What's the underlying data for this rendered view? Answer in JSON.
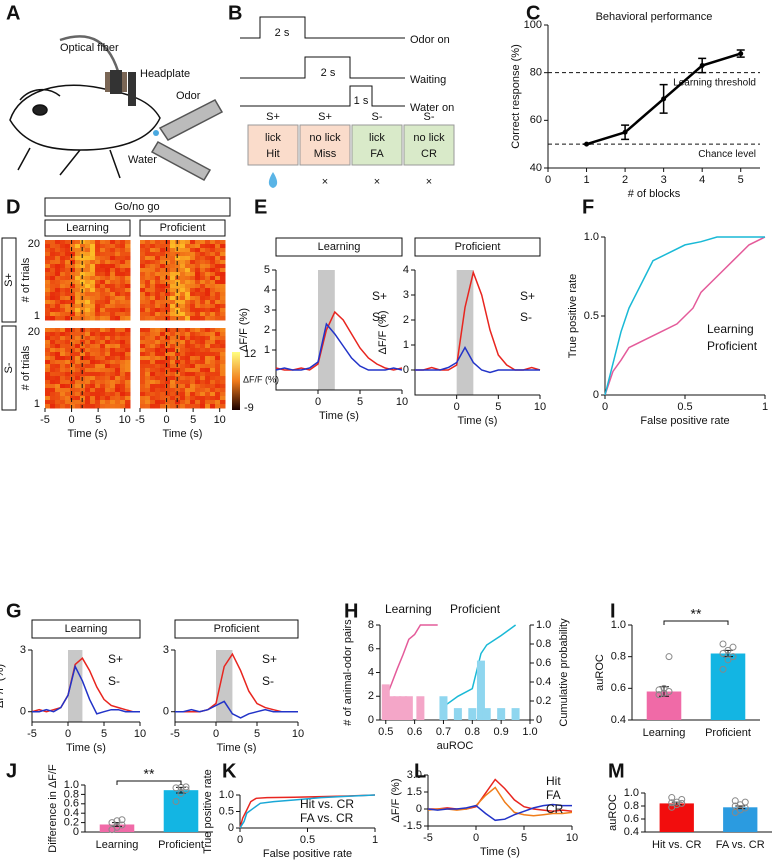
{
  "panel_labels": [
    "A",
    "B",
    "C",
    "D",
    "E",
    "F",
    "G",
    "H",
    "I",
    "J",
    "K",
    "L",
    "M"
  ],
  "panel_a": {
    "labels": [
      "Optical fiber",
      "Headplate",
      "Odor",
      "Water"
    ]
  },
  "panel_b": {
    "signals": [
      {
        "name": "Odor on",
        "duration": "2 s"
      },
      {
        "name": "Waiting",
        "duration": "2 s"
      },
      {
        "name": "Water on",
        "duration": "1 s"
      }
    ],
    "outcomes": [
      {
        "cue": "S+",
        "response": "lick",
        "outcome": "Hit",
        "color": "#e8251f",
        "box": "#fadccb"
      },
      {
        "cue": "S+",
        "response": "no lick",
        "outcome": "Miss",
        "color": "#2b3fa8",
        "box": "#fadccb",
        "result": "×"
      },
      {
        "cue": "S-",
        "response": "lick",
        "outcome": "FA",
        "color": "#2b3fa8",
        "box": "#d9eac9",
        "result": "×"
      },
      {
        "cue": "S-",
        "response": "no lick",
        "outcome": "CR",
        "color": "#e8251f",
        "box": "#d9eac9",
        "result": "×"
      }
    ]
  },
  "panel_d": {
    "title": "Go/no go",
    "headers": [
      "Learning",
      "Proficient"
    ],
    "rows": [
      "S+",
      "S-"
    ],
    "ylabel": "# of trials",
    "yticks": [
      20,
      1
    ],
    "xlim": [
      -5,
      11
    ],
    "xticks": [
      -5,
      0,
      5,
      10
    ],
    "xlabel": "Time (s)",
    "event_times": [
      0,
      2
    ],
    "colorbar_ticks": [
      12,
      -9
    ],
    "colorbar_label": "ΔF/F (%)"
  },
  "chart_data": [
    {
      "type": "line",
      "title": "Behavioral performance",
      "xlabel": "# of blocks",
      "ylabel": "Correct response (%)",
      "xlim": [
        0,
        5.5
      ],
      "xticks": [
        0,
        1,
        2,
        3,
        4,
        5
      ],
      "ylim": [
        40,
        100
      ],
      "yticks": [
        40,
        60,
        80,
        100
      ],
      "markers": true,
      "hlines": [
        {
          "value": 80,
          "label": "Learning threshold"
        },
        {
          "value": 50,
          "label": "Chance level"
        }
      ],
      "x": [
        1,
        2,
        3,
        4,
        5
      ],
      "series": [
        {
          "name": null,
          "color": "#000000",
          "values": [
            50,
            55,
            69,
            83,
            88
          ],
          "errors": [
            0,
            3,
            6,
            3,
            1.5
          ]
        }
      ]
    },
    {
      "type": "line",
      "header": "Learning",
      "xlabel": "Time (s)",
      "ylabel": "ΔF/F (%)",
      "xlim": [
        -5,
        10
      ],
      "xticks": [
        0,
        5,
        10
      ],
      "ylim": [
        -1,
        5
      ],
      "yticks": [
        1,
        2,
        3,
        4,
        5
      ],
      "stimulus_window": [
        0,
        2
      ],
      "legend": "upper-right",
      "x": [
        -5,
        -4,
        -3,
        -2,
        -1,
        0,
        1,
        2,
        3,
        4,
        5,
        6,
        7,
        8,
        9,
        10
      ],
      "series": [
        {
          "name": "S+",
          "color": "#e8251f",
          "values": [
            0.1,
            0,
            0,
            0.1,
            0,
            0.3,
            2,
            2.9,
            2.5,
            1.8,
            1.1,
            0.6,
            0.3,
            0.1,
            0,
            0.1
          ]
        },
        {
          "name": "S-",
          "color": "#2233c8",
          "values": [
            0,
            0.1,
            0,
            0,
            0.1,
            0.4,
            2.3,
            1.8,
            1.2,
            0.6,
            0.2,
            0,
            0,
            0,
            0.1,
            0
          ]
        }
      ]
    },
    {
      "type": "line",
      "header": "Proficient",
      "xlabel": "Time (s)",
      "ylabel": "ΔF/F (%)",
      "xlim": [
        -5,
        10
      ],
      "xticks": [
        0,
        5,
        10
      ],
      "ylim": [
        -1,
        4
      ],
      "yticks": [
        0,
        1,
        2,
        3,
        4
      ],
      "stimulus_window": [
        0,
        2
      ],
      "legend": "upper-right",
      "x": [
        -5,
        -4,
        -3,
        -2,
        -1,
        0,
        1,
        2,
        3,
        4,
        5,
        6,
        7,
        8,
        9,
        10
      ],
      "series": [
        {
          "name": "S+",
          "color": "#e8251f",
          "values": [
            0,
            0,
            0.1,
            0,
            0,
            0.2,
            2.5,
            3.9,
            3,
            1.6,
            0.6,
            0.2,
            0,
            0,
            0.1,
            0
          ]
        },
        {
          "name": "S-",
          "color": "#2233c8",
          "values": [
            0,
            0,
            0,
            0,
            0.1,
            0.3,
            0.9,
            0.3,
            0,
            -0.1,
            0,
            0,
            0,
            0,
            0,
            0
          ]
        }
      ]
    },
    {
      "type": "line",
      "xlabel": "False positive rate",
      "ylabel": "True positive rate",
      "xlim": [
        0,
        1
      ],
      "xticks": [
        0,
        0.5,
        1
      ],
      "ylim": [
        0,
        1
      ],
      "yticks": [
        0,
        0.5,
        {
          "value": 1,
          "label": "1.0"
        }
      ],
      "legend": "lower-right",
      "series": [
        {
          "name": "Learning",
          "color": "#e45b9a",
          "x": [
            0,
            0.05,
            0.1,
            0.15,
            0.25,
            0.35,
            0.45,
            0.55,
            0.6,
            0.7,
            0.8,
            0.9,
            1
          ],
          "values": [
            0,
            0.15,
            0.22,
            0.3,
            0.35,
            0.4,
            0.45,
            0.55,
            0.65,
            0.75,
            0.85,
            0.95,
            1
          ]
        },
        {
          "name": "Proficient",
          "color": "#19b9d6",
          "x": [
            0,
            0.05,
            0.1,
            0.15,
            0.25,
            0.3,
            0.4,
            0.5,
            0.6,
            0.7,
            0.8,
            1
          ],
          "values": [
            0,
            0.2,
            0.4,
            0.55,
            0.75,
            0.85,
            0.9,
            0.95,
            0.97,
            1,
            1,
            1
          ]
        }
      ]
    },
    {
      "type": "line",
      "header": "Learning",
      "xlabel": "Time (s)",
      "ylabel": "ΔF/F (%)",
      "xlim": [
        -5,
        10
      ],
      "xticks": [
        -5,
        0,
        5,
        10
      ],
      "ylim": [
        -0.5,
        3
      ],
      "yticks": [
        0,
        3
      ],
      "stimulus_window": [
        0,
        2
      ],
      "legend": "upper-right",
      "x": [
        -5,
        -4,
        -3,
        -2,
        -1,
        0,
        1,
        2,
        3,
        4,
        5,
        6,
        7,
        8,
        9,
        10
      ],
      "series": [
        {
          "name": "S+",
          "color": "#e8251f",
          "values": [
            0,
            0.1,
            0,
            0.1,
            0.2,
            0.8,
            2.3,
            2.6,
            2,
            1.2,
            0.6,
            0.3,
            0.2,
            0.1,
            0,
            0
          ]
        },
        {
          "name": "S-",
          "color": "#2233c8",
          "values": [
            0,
            0,
            0.1,
            0,
            0.2,
            0.8,
            2.2,
            1.5,
            0.6,
            -0.1,
            0,
            0.1,
            0.1,
            0,
            0,
            0
          ]
        }
      ]
    },
    {
      "type": "line",
      "header": "Proficient",
      "xlabel": "Time (s)",
      "xlim": [
        -5,
        10
      ],
      "xticks": [
        -5,
        0,
        5,
        10
      ],
      "ylim": [
        -0.5,
        3
      ],
      "yticks": [
        0,
        3
      ],
      "stimulus_window": [
        0,
        2
      ],
      "legend": "upper-right",
      "x": [
        -5,
        -4,
        -3,
        -2,
        -1,
        0,
        1,
        2,
        3,
        4,
        5,
        6,
        7,
        8,
        9,
        10
      ],
      "series": [
        {
          "name": "S+",
          "color": "#e8251f",
          "values": [
            0,
            0,
            0,
            0,
            0.1,
            0.4,
            2.2,
            2.8,
            2,
            1,
            0.4,
            0.2,
            0.1,
            0,
            0,
            0
          ]
        },
        {
          "name": "S-",
          "color": "#2233c8",
          "values": [
            0,
            0,
            0.1,
            0,
            0.1,
            0.3,
            0.5,
            -0.1,
            -0.3,
            -0.1,
            0,
            0.1,
            0,
            0,
            0,
            0
          ]
        }
      ]
    },
    {
      "type": "line",
      "xlabel": "auROC",
      "ylabel": "# of animal-odor pairs",
      "y2label": "Cumulative probability",
      "xlim": [
        0.48,
        1
      ],
      "xticks": [
        0.5,
        0.6,
        0.7,
        0.8,
        0.9,
        {
          "value": 1,
          "label": "1.0"
        }
      ],
      "ylim": [
        0,
        8
      ],
      "yticks": [
        0,
        2,
        4,
        6,
        8
      ],
      "y2lim": [
        0,
        1
      ],
      "y2ticks": [
        0,
        0.2,
        0.4,
        0.6,
        0.8,
        {
          "value": 1,
          "label": "1.0"
        }
      ],
      "legend": "top",
      "series": [
        {
          "name": "Learning",
          "color": "#e45b9a",
          "type": "step",
          "axis": "y2",
          "x": [
            0.5,
            0.52,
            0.54,
            0.56,
            0.58,
            0.6,
            0.62,
            0.68
          ],
          "values": [
            0.23,
            0.38,
            0.54,
            0.69,
            0.85,
            0.9,
            1,
            1
          ]
        },
        {
          "name": "Proficient",
          "color": "#19b9d6",
          "type": "step",
          "axis": "y2",
          "x": [
            0.7,
            0.75,
            0.8,
            0.83,
            0.85,
            0.9,
            0.95
          ],
          "values": [
            0.14,
            0.25,
            0.33,
            0.7,
            0.79,
            0.89,
            1
          ]
        },
        {
          "color": "#f4a6c8",
          "type": "bar",
          "x": [
            0.5,
            0.52,
            0.54,
            0.56,
            0.58,
            0.62
          ],
          "values": [
            3,
            2,
            2,
            2,
            2,
            2
          ]
        },
        {
          "color": "#8fd6ef",
          "type": "bar",
          "x": [
            0.7,
            0.75,
            0.8,
            0.83,
            0.85,
            0.9,
            0.95
          ],
          "values": [
            2,
            1,
            1,
            5,
            1,
            1,
            1
          ]
        }
      ]
    },
    {
      "type": "bar",
      "ylabel": "auROC",
      "ylim": [
        0.4,
        1
      ],
      "yticks": [
        0.4,
        0.6,
        0.8,
        {
          "value": 1,
          "label": "1.0"
        }
      ],
      "significance": "**",
      "categories": [
        "Learning",
        "Proficient"
      ],
      "values": [
        0.58,
        0.82
      ],
      "errors": [
        0.03,
        0.02
      ],
      "colors": [
        "#f06aa7",
        "#13b5e3"
      ],
      "points": [
        [
          0.56,
          0.57,
          0.58,
          0.59,
          0.6,
          0.8
        ],
        [
          0.72,
          0.78,
          0.8,
          0.82,
          0.84,
          0.86,
          0.88
        ]
      ]
    },
    {
      "type": "bar",
      "ylabel": "Difference in ΔF/F",
      "ylim": [
        0,
        1
      ],
      "yticks": [
        0,
        0.2,
        0.4,
        0.6,
        0.8,
        {
          "value": 1,
          "label": "1.0"
        }
      ],
      "significance": "**",
      "categories": [
        "Learning",
        "Proficient"
      ],
      "values": [
        0.16,
        0.89
      ],
      "errors": [
        0.04,
        0.06
      ],
      "colors": [
        "#f06aa7",
        "#13b5e3"
      ],
      "points": [
        [
          0.05,
          0.1,
          0.15,
          0.2,
          0.24,
          0.26
        ],
        [
          0.65,
          0.82,
          0.9,
          0.94,
          0.95,
          0.96
        ]
      ]
    },
    {
      "type": "line",
      "xlabel": "False positive rate",
      "ylabel": "True positive rate",
      "xlim": [
        0,
        1
      ],
      "xticks": [
        0,
        0.5,
        1
      ],
      "ylim": [
        0,
        1
      ],
      "yticks": [
        0,
        0.5,
        {
          "value": 1,
          "label": "1.0"
        }
      ],
      "legend": "lower-right",
      "series": [
        {
          "name": "Hit vs. CR",
          "color": "#e8251f",
          "x": [
            0,
            0.02,
            0.05,
            0.08,
            0.12,
            0.2,
            0.4,
            0.6,
            0.8,
            1
          ],
          "values": [
            0,
            0.3,
            0.55,
            0.8,
            0.9,
            0.92,
            0.93,
            0.95,
            0.97,
            1
          ]
        },
        {
          "name": "FA vs. CR",
          "color": "#19a7d6",
          "x": [
            0,
            0.03,
            0.05,
            0.1,
            0.15,
            0.25,
            0.4,
            0.6,
            0.8,
            1
          ],
          "values": [
            0,
            0.2,
            0.45,
            0.6,
            0.75,
            0.8,
            0.85,
            0.92,
            0.96,
            1
          ]
        }
      ]
    },
    {
      "type": "line",
      "xlabel": "Time (s)",
      "ylabel": "ΔF/F (%)",
      "xlim": [
        -5,
        10
      ],
      "xticks": [
        -5,
        0,
        5,
        10
      ],
      "ylim": [
        -1.5,
        3
      ],
      "yticks": [
        -1.5,
        0,
        1.5,
        {
          "value": 3,
          "label": "3.0"
        }
      ],
      "legend": "upper-right",
      "x": [
        -5,
        -4,
        -3,
        -2,
        -1,
        0,
        1,
        2,
        3,
        4,
        5,
        6,
        7,
        8,
        9,
        10
      ],
      "series": [
        {
          "name": "Hit",
          "color": "#e8251f",
          "values": [
            0,
            0,
            0.1,
            0,
            0,
            0.2,
            1.4,
            2.6,
            1.8,
            0.8,
            0.2,
            0,
            -0.1,
            -0.2,
            -0.1,
            -0.2
          ]
        },
        {
          "name": "FA",
          "color": "#f07d1a",
          "values": [
            -0.1,
            0,
            0,
            -0.1,
            0,
            0.3,
            1.2,
            1.9,
            0.6,
            -0.3,
            -0.5,
            -0.6,
            -0.5,
            -0.4,
            -0.4,
            -0.3
          ]
        },
        {
          "name": "CR",
          "color": "#2233c8",
          "values": [
            0,
            -0.1,
            0,
            0,
            0.1,
            0.3,
            -0.4,
            -1,
            -0.9,
            -0.5,
            -0.2,
            0.1,
            0.3,
            0.4,
            0.3,
            0.3
          ]
        }
      ]
    },
    {
      "type": "bar",
      "ylabel": "auROC",
      "ylim": [
        0.4,
        1
      ],
      "yticks": [
        0.4,
        0.6,
        0.8,
        {
          "value": 1,
          "label": "1.0"
        }
      ],
      "categories": [
        "Hit vs. CR",
        "FA vs. CR"
      ],
      "values": [
        0.84,
        0.78
      ],
      "errors": [
        0.02,
        0.02
      ],
      "colors": [
        "#f20d0d",
        "#2b9be0"
      ],
      "points": [
        [
          0.78,
          0.82,
          0.84,
          0.85,
          0.86,
          0.9,
          0.93
        ],
        [
          0.7,
          0.74,
          0.77,
          0.8,
          0.82,
          0.86,
          0.88
        ]
      ]
    }
  ]
}
